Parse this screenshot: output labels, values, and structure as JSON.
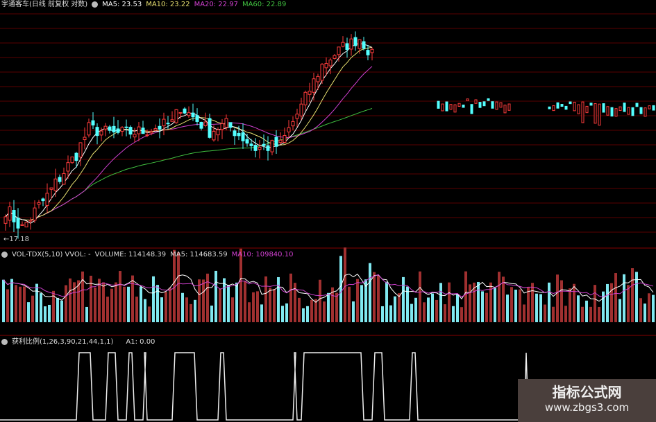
{
  "header": {
    "title": "宇通客车(日线 前复权 对数)",
    "ma5": "MA5: 23.53",
    "ma10": "MA10: 23.22",
    "ma20": "MA20: 22.97",
    "ma60": "MA60: 22.89"
  },
  "volume_header": {
    "name": "VOL-TDX(5,10) VVOL: -",
    "volume": "VOLUME: 114148.39",
    "ma5": "MA5: 114683.59",
    "ma10": "MA10: 109840.10"
  },
  "indicator_header": {
    "name": "获利比例(1,26,3,90,21,44,1,1)",
    "a1": "A1: 0.00"
  },
  "low_marker": "←17.18",
  "watermark": {
    "title": "指标公式网",
    "url": "www.zbgs3.com"
  },
  "colors": {
    "up": "#ff3c3c",
    "down": "#54ffff",
    "ma5": "#ffffff",
    "ma10": "#e8e070",
    "ma20": "#d040d0",
    "ma60": "#40c040",
    "grid": "#5a0000",
    "vol_up": "#a03030",
    "vol_down": "#80e8f0"
  },
  "price_scale": "log",
  "price_keypoints": [
    [
      0,
      18.0
    ],
    [
      4,
      17.4
    ],
    [
      10,
      18.4
    ],
    [
      17,
      19.8
    ],
    [
      20,
      20.7
    ],
    [
      26,
      20.5
    ],
    [
      33,
      20.6
    ],
    [
      40,
      20.9
    ],
    [
      42,
      21.5
    ],
    [
      49,
      20.6
    ],
    [
      53,
      20.85
    ],
    [
      60,
      20.0
    ],
    [
      66,
      20.1
    ],
    [
      71,
      21.5
    ],
    [
      76,
      23.1
    ],
    [
      81,
      23.85
    ],
    [
      85,
      24.2
    ],
    [
      88,
      23.5
    ]
  ],
  "indicator_high_ranges": [
    [
      17,
      21
    ],
    [
      24,
      27
    ],
    [
      29,
      31
    ],
    [
      33,
      34
    ],
    [
      40,
      46
    ],
    [
      51,
      53
    ],
    [
      69,
      70
    ],
    [
      71,
      86
    ],
    [
      88,
      91
    ],
    [
      97,
      99
    ]
  ],
  "indicator_spike": 125
}
